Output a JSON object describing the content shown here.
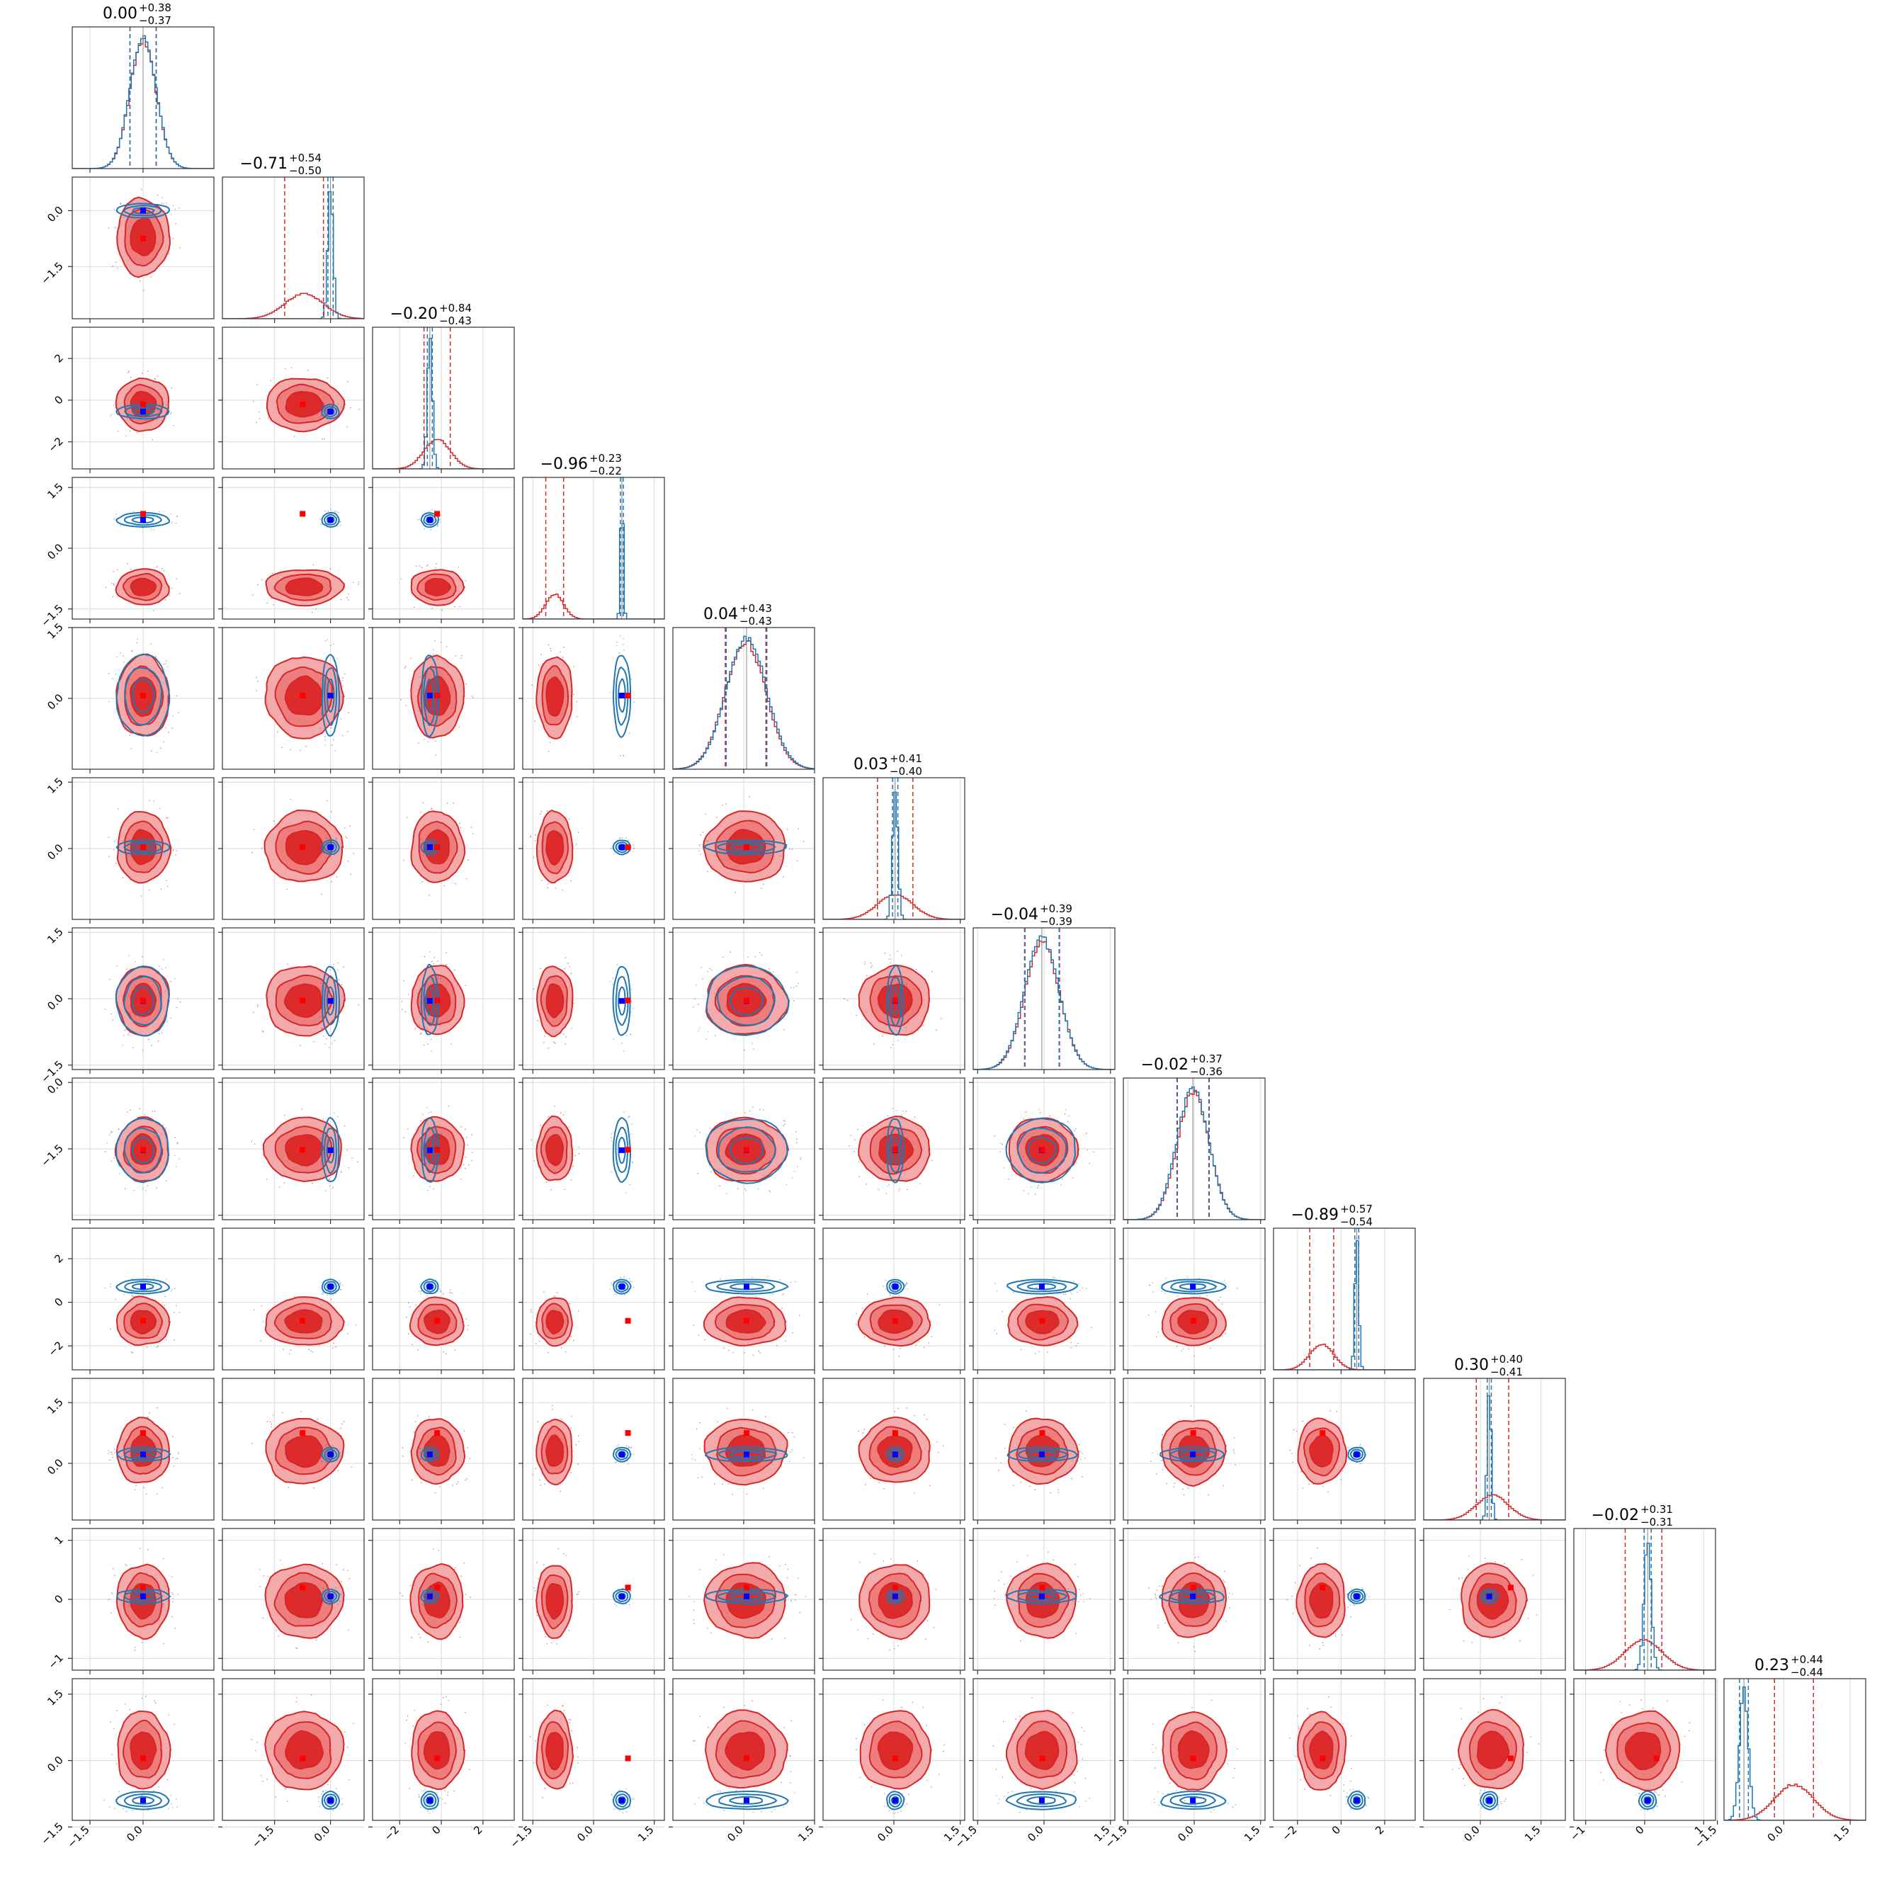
{
  "chart_data": {
    "type": "corner",
    "n_params": 12,
    "colors": {
      "red": "#d62728",
      "blue": "#1f77b4",
      "marker_blue": "#0000ff",
      "marker_red": "#ff0000"
    },
    "grid": true,
    "titles": [
      {
        "median": "0.00",
        "plus": "+0.38",
        "minus": "−0.37"
      },
      {
        "median": "−0.71",
        "plus": "+0.54",
        "minus": "−0.50"
      },
      {
        "median": "−0.20",
        "plus": "+0.84",
        "minus": "−0.43"
      },
      {
        "median": "−0.96",
        "plus": "+0.23",
        "minus": "−0.22"
      },
      {
        "median": "0.04",
        "plus": "+0.43",
        "minus": "−0.43"
      },
      {
        "median": "0.03",
        "plus": "+0.41",
        "minus": "−0.40"
      },
      {
        "median": "−0.04",
        "plus": "+0.39",
        "minus": "−0.39"
      },
      {
        "median": "−0.02",
        "plus": "+0.37",
        "minus": "−0.36"
      },
      {
        "median": "−0.89",
        "plus": "+0.57",
        "minus": "−0.54"
      },
      {
        "median": "0.30",
        "plus": "+0.40",
        "minus": "−0.41"
      },
      {
        "median": "−0.02",
        "plus": "+0.31",
        "minus": "−0.31"
      },
      {
        "median": "0.23",
        "plus": "+0.44",
        "minus": "−0.44"
      }
    ],
    "axis_ranges": [
      [
        -2,
        2
      ],
      [
        -2.9,
        0.9
      ],
      [
        -3.3,
        3.5
      ],
      [
        -1.75,
        1.75
      ],
      [
        -1.5,
        1.5
      ],
      [
        -1.6,
        1.6
      ],
      [
        -1.6,
        1.6
      ],
      [
        -1.6,
        1.6
      ],
      [
        -3.1,
        3.4
      ],
      [
        -1.4,
        2.1
      ],
      [
        -1.2,
        1.2
      ],
      [
        -1.35,
        1.85
      ]
    ],
    "ticks": [
      [
        "−1.5",
        "0.0"
      ],
      [
        "−1.5",
        "0.0"
      ],
      [
        "−2",
        "0",
        "2"
      ],
      [
        "−1.5",
        "0.0",
        "1.5"
      ],
      [
        "0.0",
        "1.5"
      ],
      [
        "0.0",
        "1.5"
      ],
      [
        "−1.5",
        "0.0",
        "1.5"
      ],
      [
        "−1.5",
        "0.0",
        "1.5"
      ],
      [
        "−2",
        "0",
        "2"
      ],
      [
        "0.0",
        "1.5"
      ],
      [
        "−1",
        "0",
        "1"
      ],
      [
        "−1.5",
        "0.0",
        "1.5"
      ]
    ],
    "tick_values": [
      [
        -1.5,
        0
      ],
      [
        -1.5,
        0
      ],
      [
        -2,
        0,
        2
      ],
      [
        -1.5,
        0,
        1.5
      ],
      [
        0,
        1.5
      ],
      [
        0,
        1.5
      ],
      [
        -1.5,
        0,
        1.5
      ],
      [
        -1.5,
        0,
        1.5
      ],
      [
        -2,
        0,
        2
      ],
      [
        0,
        1.5
      ],
      [
        -1,
        0,
        1
      ],
      [
        -1.5,
        0,
        1.5
      ]
    ],
    "x_tick_labels_bottom": [
      [
        "−1.5",
        "0.0"
      ],
      [
        "−1.5",
        "0.0"
      ],
      [
        "−2",
        "0",
        "2"
      ],
      [
        "−1.5",
        "0.0",
        "1.5"
      ],
      [
        "0.0",
        "1.5"
      ],
      [
        "0.0",
        "1.5"
      ],
      [
        "−1.5",
        "0.0",
        "1.5"
      ],
      [
        "−1.5",
        "0.0",
        "1.5"
      ],
      [
        "−2",
        "0",
        "2"
      ],
      [
        "0.0",
        "1.5"
      ],
      [
        "−1",
        "0",
        "1"
      ],
      [
        "−1.5",
        "0.0",
        "1.5"
      ]
    ],
    "y_tick_labels_left": [
      [],
      [
        "0.0",
        "−1.5"
      ],
      [
        "2",
        "0",
        "−2"
      ],
      [
        "1.5",
        "0.0",
        "−1.5"
      ],
      [
        "1.5",
        "0.0"
      ],
      [
        "1.5",
        "0.0"
      ],
      [
        "1.5",
        "0.0",
        "−1.5"
      ],
      [
        "0.0",
        "−1.5"
      ],
      [
        "2",
        "0",
        "−2"
      ],
      [
        "1.5",
        "0.0"
      ],
      [
        "1",
        "0",
        "−1"
      ],
      [
        "1.5",
        "0.0",
        "−1.5"
      ]
    ],
    "red_posterior": {
      "centers": [
        0.0,
        -0.71,
        -0.2,
        -0.96,
        0.04,
        0.03,
        -0.04,
        -0.02,
        -0.89,
        0.3,
        -0.02,
        0.23
      ],
      "sigmas": [
        0.37,
        0.52,
        0.63,
        0.22,
        0.43,
        0.4,
        0.39,
        0.36,
        0.55,
        0.4,
        0.31,
        0.44
      ]
    },
    "blue_posterior": {
      "centers": [
        0.0,
        0.0,
        -0.55,
        0.7,
        0.06,
        0.03,
        -0.05,
        -0.03,
        0.72,
        0.22,
        0.05,
        -0.9
      ],
      "sigmas": [
        0.37,
        0.07,
        0.12,
        0.035,
        0.43,
        0.06,
        0.39,
        0.36,
        0.09,
        0.05,
        0.06,
        0.1
      ]
    },
    "truth_blue": [
      0.0,
      0.0,
      -0.55,
      0.7,
      0.06,
      0.03,
      -0.05,
      -0.03,
      0.72,
      0.22,
      0.05,
      -0.9
    ],
    "truth_red": [
      0.0,
      -0.75,
      -0.2,
      0.85,
      0.06,
      0.03,
      -0.04,
      -0.02,
      -0.85,
      0.75,
      0.2,
      0.05
    ]
  }
}
